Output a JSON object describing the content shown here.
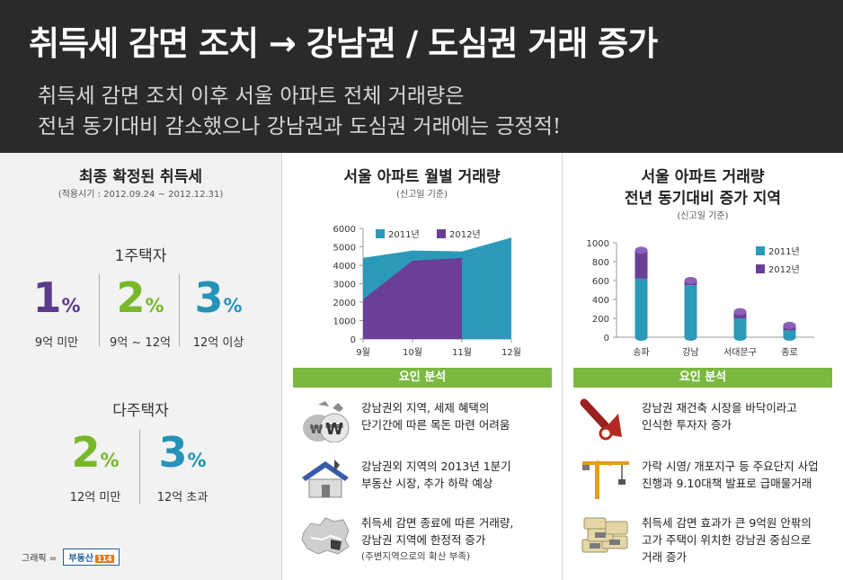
{
  "header": {
    "title": "취득세 감면 조치 → 강남권 / 도심권 거래 증가",
    "subtitle_line1": "취득세 감면 조치 이후 서울 아파트 전체 거래량은",
    "subtitle_line2": "전년 동기대비 감소했으나 강남권과 도심권 거래에는 긍정적!"
  },
  "tax_panel": {
    "title": "최종 확정된 취득세",
    "period": "(적용시기 : 2012.09.24 ~ 2012.12.31)",
    "single_home": {
      "label": "1주택자",
      "rates": [
        {
          "value": "1",
          "unit": "%",
          "range": "9억 미만",
          "color": "#5b3a8c"
        },
        {
          "value": "2",
          "unit": "%",
          "range": "9억 ~ 12억",
          "color": "#76b82a"
        },
        {
          "value": "3",
          "unit": "%",
          "range": "12억 이상",
          "color": "#2593b8"
        }
      ]
    },
    "multi_home": {
      "label": "다주택자",
      "rates": [
        {
          "value": "2",
          "unit": "%",
          "range": "12억 미만",
          "color": "#76b82a"
        },
        {
          "value": "3",
          "unit": "%",
          "range": "12억 초과",
          "color": "#2593b8"
        }
      ]
    },
    "credit_label": "그래픽 =",
    "credit_brand": "부동산",
    "credit_tag": "114"
  },
  "monthly_panel": {
    "title": "서울 아파트 월별 거래량",
    "note": "(신고일 기준)",
    "factor_header": "요인 분석",
    "factors": [
      {
        "icon": "money-bag-icon",
        "lines": [
          "강남권외 지역, 세제 혜택의",
          "단기간에 따른 목돈 마련 어려움"
        ],
        "sub": ""
      },
      {
        "icon": "house-icon",
        "lines": [
          "강남권외 지역의 2013년 1분기",
          "부동산 시장, 추가 하락 예상"
        ],
        "sub": ""
      },
      {
        "icon": "seoul-map-icon",
        "lines": [
          "취득세 감면 종료에 따른 거래량,",
          "강남권 지역에 한정적 증가"
        ],
        "sub": "(주변지역으로의 확산 부족)"
      }
    ]
  },
  "increase_panel": {
    "title_line1": "서울 아파트 거래량",
    "title_line2": "전년 동기대비 증가 지역",
    "note": "(신고일 기준)",
    "factor_header": "요인 분석",
    "factors": [
      {
        "icon": "rising-arrow-icon",
        "lines": [
          "강남권 재건축 시장을 바닥이라고",
          "인식한 투자자 증가"
        ]
      },
      {
        "icon": "crane-icon",
        "lines": [
          "가락 시영/ 개포지구 등 주요단지 사업",
          "진행과 9.10대책 발표로 급매물거래"
        ]
      },
      {
        "icon": "cash-stack-icon",
        "lines": [
          "취득세 감면 효과가 큰 9억원 안팎의",
          "고가 주택이 위치한 강남권 중심으로",
          "거래 증가"
        ]
      }
    ]
  },
  "chart_data": [
    {
      "type": "area",
      "categories": [
        "9월",
        "10월",
        "11월",
        "12월"
      ],
      "series": [
        {
          "name": "2011년",
          "values": [
            4400,
            4800,
            4750,
            5500
          ],
          "color": "#2a9ab8"
        },
        {
          "name": "2012년",
          "values": [
            2150,
            4250,
            4400,
            null
          ],
          "color": "#6a3f98"
        }
      ],
      "ylim": [
        0,
        6000
      ],
      "yticks": [
        0,
        1000,
        2000,
        3000,
        4000,
        5000,
        6000
      ],
      "legend": "top-left",
      "grid": false
    },
    {
      "type": "bar",
      "categories": [
        "송파",
        "강남",
        "서대문구",
        "종로"
      ],
      "series": [
        {
          "name": "2011년",
          "values": [
            620,
            550,
            200,
            70
          ],
          "color": "#2a9ab8"
        },
        {
          "name": "2012년",
          "values": [
            920,
            600,
            270,
            125
          ],
          "color": "#6a3f98"
        }
      ],
      "stacked_overlay": true,
      "ylim": [
        0,
        1000
      ],
      "yticks": [
        0,
        200,
        400,
        600,
        800,
        1000
      ],
      "legend": "top-right",
      "grid": false
    }
  ]
}
